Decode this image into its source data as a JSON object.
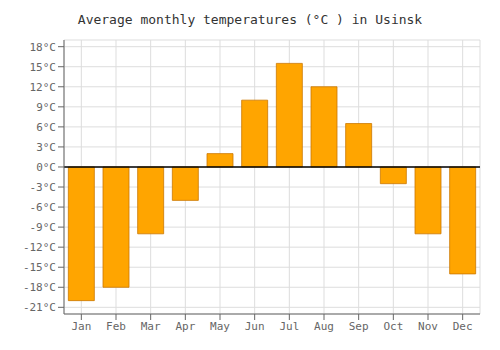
{
  "chart_data": {
    "type": "bar",
    "title": "Average monthly temperatures (°C ) in Usinsk",
    "categories": [
      "Jan",
      "Feb",
      "Mar",
      "Apr",
      "May",
      "Jun",
      "Jul",
      "Aug",
      "Sep",
      "Oct",
      "Nov",
      "Dec"
    ],
    "values": [
      -20,
      -18,
      -10,
      -5,
      2,
      10,
      15.5,
      12,
      6.5,
      -2.5,
      -10,
      -16
    ],
    "color": "#FFA500",
    "ylim": [
      -22,
      19
    ],
    "yticks": [
      {
        "value": -21,
        "label": "-21°C"
      },
      {
        "value": -18,
        "label": "-18°C"
      },
      {
        "value": -15,
        "label": "-15°C"
      },
      {
        "value": -12,
        "label": "-12°C"
      },
      {
        "value": -9,
        "label": "-9°C"
      },
      {
        "value": -6,
        "label": "-6°C"
      },
      {
        "value": -3,
        "label": "-3°C"
      },
      {
        "value": 0,
        "label": "0°C"
      },
      {
        "value": 3,
        "label": "3°C"
      },
      {
        "value": 6,
        "label": "6°C"
      },
      {
        "value": 9,
        "label": "9°C"
      },
      {
        "value": 12,
        "label": "12°C"
      },
      {
        "value": 15,
        "label": "15°C"
      },
      {
        "value": 18,
        "label": "18°C"
      }
    ],
    "grid": true
  }
}
